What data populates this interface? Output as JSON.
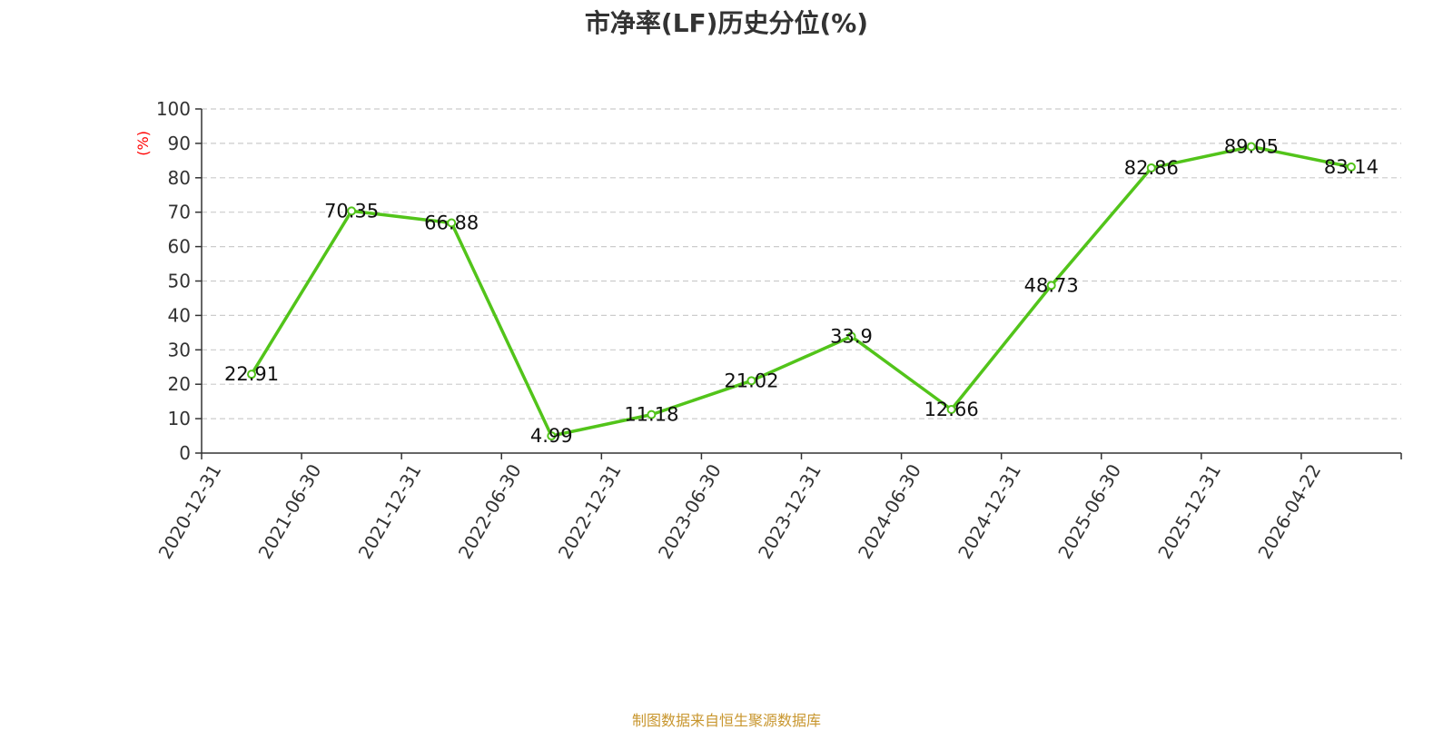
{
  "chart_data": {
    "type": "line",
    "title": "市净率(LF)历史分位(%)",
    "ylabel": "(%)",
    "xlabel": "",
    "categories": [
      "2020-12-31",
      "2021-06-30",
      "2021-12-31",
      "2022-06-30",
      "2022-12-31",
      "2023-06-30",
      "2023-12-31",
      "2024-06-30",
      "2024-12-31",
      "2025-06-30",
      "2025-12-31",
      "2026-04-22"
    ],
    "series": [
      {
        "values": [
          22.91,
          70.35,
          66.88,
          4.99,
          11.18,
          21.02,
          33.9,
          12.66,
          48.73,
          82.86,
          89.05,
          83.14
        ],
        "labels": [
          "22.91",
          "70.35",
          "66.88",
          "4.99",
          "11.18",
          "21.02",
          "33.9",
          "12.66",
          "48.73",
          "82.86",
          "89.05",
          "83.14"
        ]
      }
    ],
    "ylim": [
      0,
      100
    ],
    "yticks": [
      "0",
      "10",
      "20",
      "30",
      "40",
      "50",
      "60",
      "70",
      "80",
      "90",
      "100"
    ],
    "grid": true,
    "line_color": "#52c41a",
    "ylabel_color": "#ff0000",
    "grid_color": "#cccccc"
  },
  "source_note": "制图数据来自恒生聚源数据库",
  "source_color": "#c8962e"
}
